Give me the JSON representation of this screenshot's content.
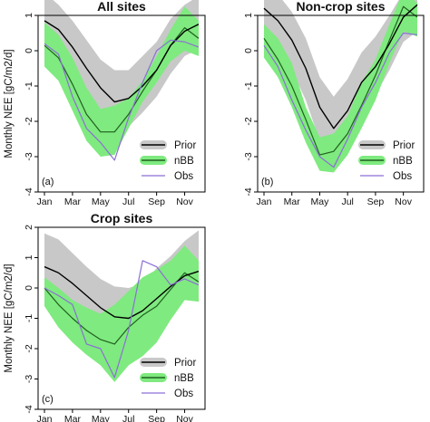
{
  "chart_data": [
    {
      "type": "line",
      "panel_tag": "(a)",
      "title": "All sites",
      "ylabel": "Monthly NEE [gC/m2/d]",
      "ylim": [
        -4,
        1
      ],
      "yticks": [
        1,
        0,
        -1,
        -2,
        -3,
        -4
      ],
      "x_range": [
        1,
        12
      ],
      "xtick_months": [
        1,
        3,
        5,
        7,
        9,
        11
      ],
      "xtick_labels": [
        "Jan",
        "Mar",
        "May",
        "Jul",
        "Sep",
        "Nov"
      ],
      "legend_position": "bottom-right",
      "series": [
        {
          "name": "Prior",
          "kind": "line+band",
          "color": "#000000",
          "band_color": "#c8c8c8",
          "x": [
            1,
            2,
            3,
            4,
            5,
            6,
            7,
            8,
            9,
            10,
            11,
            12
          ],
          "mean": [
            0.85,
            0.6,
            0.1,
            -0.5,
            -1.05,
            -1.45,
            -1.35,
            -1.0,
            -0.55,
            0.15,
            0.55,
            0.75
          ],
          "lower": [
            0.1,
            -0.1,
            -0.7,
            -1.3,
            -1.9,
            -2.35,
            -2.15,
            -1.75,
            -1.3,
            -0.65,
            -0.15,
            0.05
          ],
          "upper": [
            1.65,
            1.3,
            0.85,
            0.3,
            -0.25,
            -0.55,
            -0.55,
            -0.15,
            0.25,
            0.9,
            1.3,
            1.55
          ]
        },
        {
          "name": "nBB",
          "kind": "band",
          "color": "#40e040",
          "band_color": "#7fea7f",
          "x": [
            1,
            2,
            3,
            4,
            5,
            6,
            7,
            8,
            9,
            10,
            11,
            12
          ],
          "lower": [
            -0.45,
            -0.85,
            -1.7,
            -2.55,
            -3.0,
            -2.95,
            -2.2,
            -1.45,
            -0.9,
            -0.3,
            0.0,
            -0.15
          ],
          "upper": [
            0.8,
            0.45,
            -0.2,
            -1.05,
            -1.65,
            -1.55,
            -1.35,
            -0.85,
            -0.15,
            0.6,
            1.25,
            0.85
          ]
        },
        {
          "name": "Obs",
          "kind": "line",
          "color": "#8c6fd6",
          "x": [
            1,
            2,
            3,
            4,
            5,
            6,
            7,
            8,
            9,
            10,
            11,
            12
          ],
          "values": [
            0.2,
            -0.1,
            -1.3,
            -2.2,
            -2.6,
            -3.1,
            -1.9,
            -0.9,
            0.0,
            0.3,
            0.25,
            0.1
          ]
        },
        {
          "name": "",
          "kind": "line",
          "color": "#1f5f1f",
          "x": [
            1,
            2,
            3,
            4,
            5,
            6,
            7,
            8,
            9,
            10,
            11,
            12
          ],
          "values": [
            0.15,
            -0.2,
            -0.95,
            -1.8,
            -2.3,
            -2.3,
            -1.8,
            -1.15,
            -0.55,
            0.15,
            0.65,
            0.35
          ]
        }
      ]
    },
    {
      "type": "line",
      "panel_tag": "(b)",
      "title": "Non-crop sites",
      "ylabel": "",
      "ylim": [
        -4,
        1
      ],
      "yticks": [
        1,
        0,
        -1,
        -2,
        -3,
        -4
      ],
      "x_range": [
        1,
        12
      ],
      "xtick_months": [
        1,
        3,
        5,
        7,
        9,
        11
      ],
      "xtick_labels": [
        "Jan",
        "Mar",
        "May",
        "Jul",
        "Sep",
        "Nov"
      ],
      "legend_position": "bottom-right",
      "series": [
        {
          "name": "Prior",
          "kind": "line+band",
          "color": "#000000",
          "band_color": "#c8c8c8",
          "x": [
            1,
            2,
            3,
            4,
            5,
            6,
            7,
            8,
            9,
            10,
            11,
            12
          ],
          "mean": [
            1.2,
            0.85,
            0.3,
            -0.5,
            -1.6,
            -2.2,
            -1.7,
            -0.9,
            -0.45,
            0.2,
            0.95,
            1.3
          ],
          "lower": [
            0.45,
            0.05,
            -0.55,
            -1.4,
            -2.55,
            -3.05,
            -2.55,
            -1.75,
            -1.25,
            -0.55,
            0.25,
            0.55
          ],
          "upper": [
            1.95,
            1.6,
            1.1,
            0.35,
            -0.75,
            -1.3,
            -0.8,
            -0.05,
            0.4,
            1.0,
            1.65,
            2.0
          ]
        },
        {
          "name": "nBB",
          "kind": "band",
          "color": "#40e040",
          "band_color": "#7fea7f",
          "x": [
            1,
            2,
            3,
            4,
            5,
            6,
            7,
            8,
            9,
            10,
            11,
            12
          ],
          "lower": [
            -0.2,
            -0.75,
            -1.6,
            -2.6,
            -3.4,
            -3.45,
            -2.95,
            -2.2,
            -1.4,
            -0.35,
            0.55,
            0.4
          ],
          "upper": [
            0.75,
            0.35,
            -0.35,
            -1.6,
            -2.45,
            -2.35,
            -1.85,
            -0.9,
            -0.25,
            0.75,
            1.7,
            1.35
          ]
        },
        {
          "name": "Obs",
          "kind": "line",
          "color": "#8c6fd6",
          "x": [
            1,
            2,
            3,
            4,
            5,
            6,
            7,
            8,
            9,
            10,
            11,
            12
          ],
          "values": [
            0.15,
            -0.45,
            -1.4,
            -2.25,
            -3.0,
            -3.3,
            -2.5,
            -1.6,
            -0.9,
            -0.05,
            0.5,
            0.45
          ]
        },
        {
          "name": "",
          "kind": "line",
          "color": "#1f5f1f",
          "x": [
            1,
            2,
            3,
            4,
            5,
            6,
            7,
            8,
            9,
            10,
            11,
            12
          ],
          "values": [
            0.35,
            -0.25,
            -1.0,
            -1.95,
            -2.95,
            -2.85,
            -2.35,
            -1.55,
            -0.7,
            0.3,
            1.25,
            0.95
          ]
        }
      ]
    },
    {
      "type": "line",
      "panel_tag": "(c)",
      "title": "Crop sites",
      "ylabel": "Monthly NEE [gC/m2/d]",
      "ylim": [
        -4,
        2
      ],
      "yticks": [
        2,
        1,
        0,
        -1,
        -2,
        -3,
        -4
      ],
      "x_range": [
        1,
        12
      ],
      "xtick_months": [
        1,
        3,
        5,
        7,
        9,
        11
      ],
      "xtick_labels": [
        "Jan",
        "Mar",
        "May",
        "Jul",
        "Sep",
        "Nov"
      ],
      "legend_position": "bottom-right",
      "series": [
        {
          "name": "Prior",
          "kind": "line+band",
          "color": "#000000",
          "band_color": "#c8c8c8",
          "x": [
            1,
            2,
            3,
            4,
            5,
            6,
            7,
            8,
            9,
            10,
            11,
            12
          ],
          "mean": [
            0.7,
            0.5,
            0.15,
            -0.25,
            -0.65,
            -0.95,
            -1.0,
            -0.75,
            -0.35,
            0.05,
            0.4,
            0.55
          ],
          "lower": [
            -0.4,
            -0.55,
            -0.75,
            -1.15,
            -1.6,
            -1.85,
            -1.75,
            -1.45,
            -1.05,
            -0.65,
            -0.25,
            -0.05
          ],
          "upper": [
            1.8,
            1.6,
            1.15,
            0.7,
            0.3,
            0.05,
            0.0,
            0.15,
            0.65,
            1.05,
            1.55,
            1.9
          ]
        },
        {
          "name": "nBB",
          "kind": "band",
          "color": "#40e040",
          "band_color": "#7fea7f",
          "x": [
            1,
            2,
            3,
            4,
            5,
            6,
            7,
            8,
            9,
            10,
            11,
            12
          ],
          "lower": [
            -0.6,
            -1.3,
            -1.8,
            -2.2,
            -2.55,
            -3.1,
            -2.55,
            -2.25,
            -1.8,
            -1.05,
            -0.4,
            -0.45
          ],
          "upper": [
            0.35,
            0.0,
            -0.4,
            -0.65,
            -0.85,
            -0.55,
            -0.1,
            0.35,
            0.6,
            0.9,
            1.4,
            0.9
          ]
        },
        {
          "name": "Obs",
          "kind": "line",
          "color": "#8c6fd6",
          "x": [
            1,
            2,
            3,
            4,
            5,
            6,
            7,
            8,
            9,
            10,
            11,
            12
          ],
          "values": [
            0.0,
            -0.25,
            -0.55,
            -1.85,
            -2.0,
            -2.95,
            -1.4,
            0.9,
            0.7,
            0.1,
            0.3,
            0.1
          ]
        },
        {
          "name": "",
          "kind": "line",
          "color": "#1f5f1f",
          "x": [
            1,
            2,
            3,
            4,
            5,
            6,
            7,
            8,
            9,
            10,
            11,
            12
          ],
          "values": [
            0.0,
            -0.55,
            -1.0,
            -1.4,
            -1.7,
            -1.85,
            -1.3,
            -0.9,
            -0.6,
            -0.05,
            0.5,
            0.2
          ]
        }
      ]
    }
  ]
}
